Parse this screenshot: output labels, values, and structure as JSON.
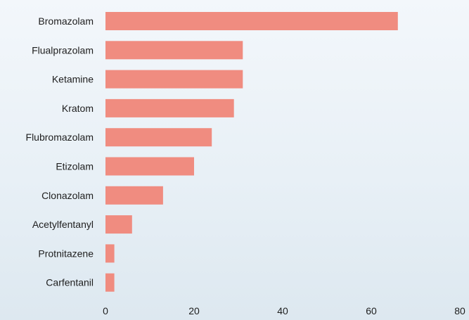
{
  "chart_data": {
    "type": "bar",
    "orientation": "horizontal",
    "categories": [
      "Bromazolam",
      "Flualprazolam",
      "Ketamine",
      "Kratom",
      "Flubromazolam",
      "Etizolam",
      "Clonazolam",
      "Acetylfentanyl",
      "Protnitazene",
      "Carfentanil"
    ],
    "values": [
      66,
      31,
      31,
      29,
      24,
      20,
      13,
      6,
      2,
      2
    ],
    "xlim": [
      0,
      80
    ],
    "xticks": [
      0,
      20,
      40,
      60,
      80
    ],
    "xtick_labels": [
      "0",
      "20",
      "40",
      "60",
      "80"
    ],
    "title": "",
    "xlabel": "",
    "ylabel": "",
    "grid": false,
    "legend": "none",
    "colors": {
      "bar": "#f08c80",
      "text": "#1e1e1e"
    }
  }
}
